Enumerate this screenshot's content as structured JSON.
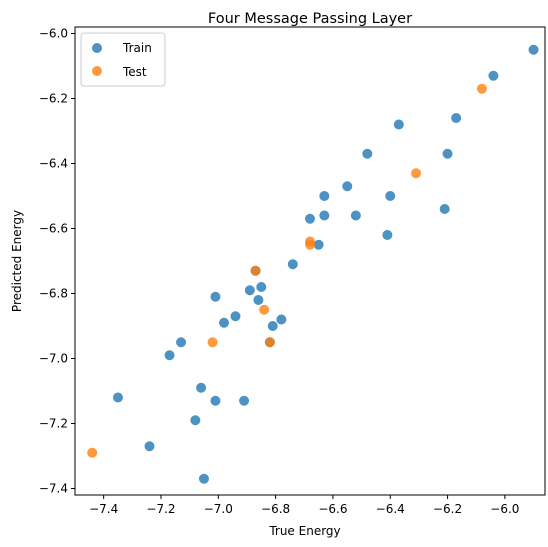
{
  "chart_data": {
    "type": "scatter",
    "title": "Four Message Passing Layer",
    "xlabel": "True Energy",
    "ylabel": "Predicted Energy",
    "xlim": [
      -7.5,
      -5.86
    ],
    "ylim": [
      -7.42,
      -5.98
    ],
    "xticks": [
      -7.4,
      -7.2,
      -7.0,
      -6.8,
      -6.6,
      -6.4,
      -6.2,
      -6.0
    ],
    "yticks": [
      -7.4,
      -7.2,
      -7.0,
      -6.8,
      -6.6,
      -6.4,
      -6.2,
      -6.0
    ],
    "xtick_labels": [
      "−7.4",
      "−7.2",
      "−7.0",
      "−6.8",
      "−6.6",
      "−6.4",
      "−6.2",
      "−6.0"
    ],
    "ytick_labels": [
      "−7.4",
      "−7.2",
      "−7.0",
      "−6.8",
      "−6.6",
      "−6.4",
      "−6.2",
      "−6.0"
    ],
    "grid": false,
    "legend_position": "top-left",
    "series": [
      {
        "name": "Train",
        "color": "#1f77b4",
        "points": [
          [
            -5.9,
            -6.05
          ],
          [
            -6.04,
            -6.13
          ],
          [
            -6.17,
            -6.26
          ],
          [
            -6.2,
            -6.37
          ],
          [
            -6.21,
            -6.54
          ],
          [
            -6.37,
            -6.28
          ],
          [
            -6.4,
            -6.5
          ],
          [
            -6.41,
            -6.62
          ],
          [
            -6.48,
            -6.37
          ],
          [
            -6.52,
            -6.56
          ],
          [
            -6.55,
            -6.47
          ],
          [
            -6.63,
            -6.5
          ],
          [
            -6.63,
            -6.56
          ],
          [
            -6.65,
            -6.65
          ],
          [
            -6.68,
            -6.57
          ],
          [
            -6.74,
            -6.71
          ],
          [
            -6.78,
            -6.88
          ],
          [
            -6.81,
            -6.9
          ],
          [
            -6.82,
            -6.95
          ],
          [
            -6.85,
            -6.78
          ],
          [
            -6.86,
            -6.82
          ],
          [
            -6.87,
            -6.73
          ],
          [
            -6.89,
            -6.79
          ],
          [
            -6.94,
            -6.87
          ],
          [
            -6.98,
            -6.89
          ],
          [
            -7.01,
            -6.81
          ],
          [
            -7.01,
            -7.13
          ],
          [
            -7.06,
            -7.09
          ],
          [
            -7.05,
            -7.37
          ],
          [
            -7.08,
            -7.19
          ],
          [
            -6.91,
            -7.13
          ],
          [
            -7.13,
            -6.95
          ],
          [
            -7.17,
            -6.99
          ],
          [
            -7.24,
            -7.27
          ],
          [
            -7.35,
            -7.12
          ]
        ]
      },
      {
        "name": "Test",
        "color": "#ff7f0e",
        "points": [
          [
            -6.08,
            -6.17
          ],
          [
            -6.31,
            -6.43
          ],
          [
            -6.68,
            -6.64
          ],
          [
            -6.68,
            -6.65
          ],
          [
            -6.82,
            -6.95
          ],
          [
            -6.84,
            -6.85
          ],
          [
            -6.87,
            -6.73
          ],
          [
            -7.02,
            -6.95
          ],
          [
            -7.44,
            -7.29
          ]
        ]
      }
    ]
  }
}
